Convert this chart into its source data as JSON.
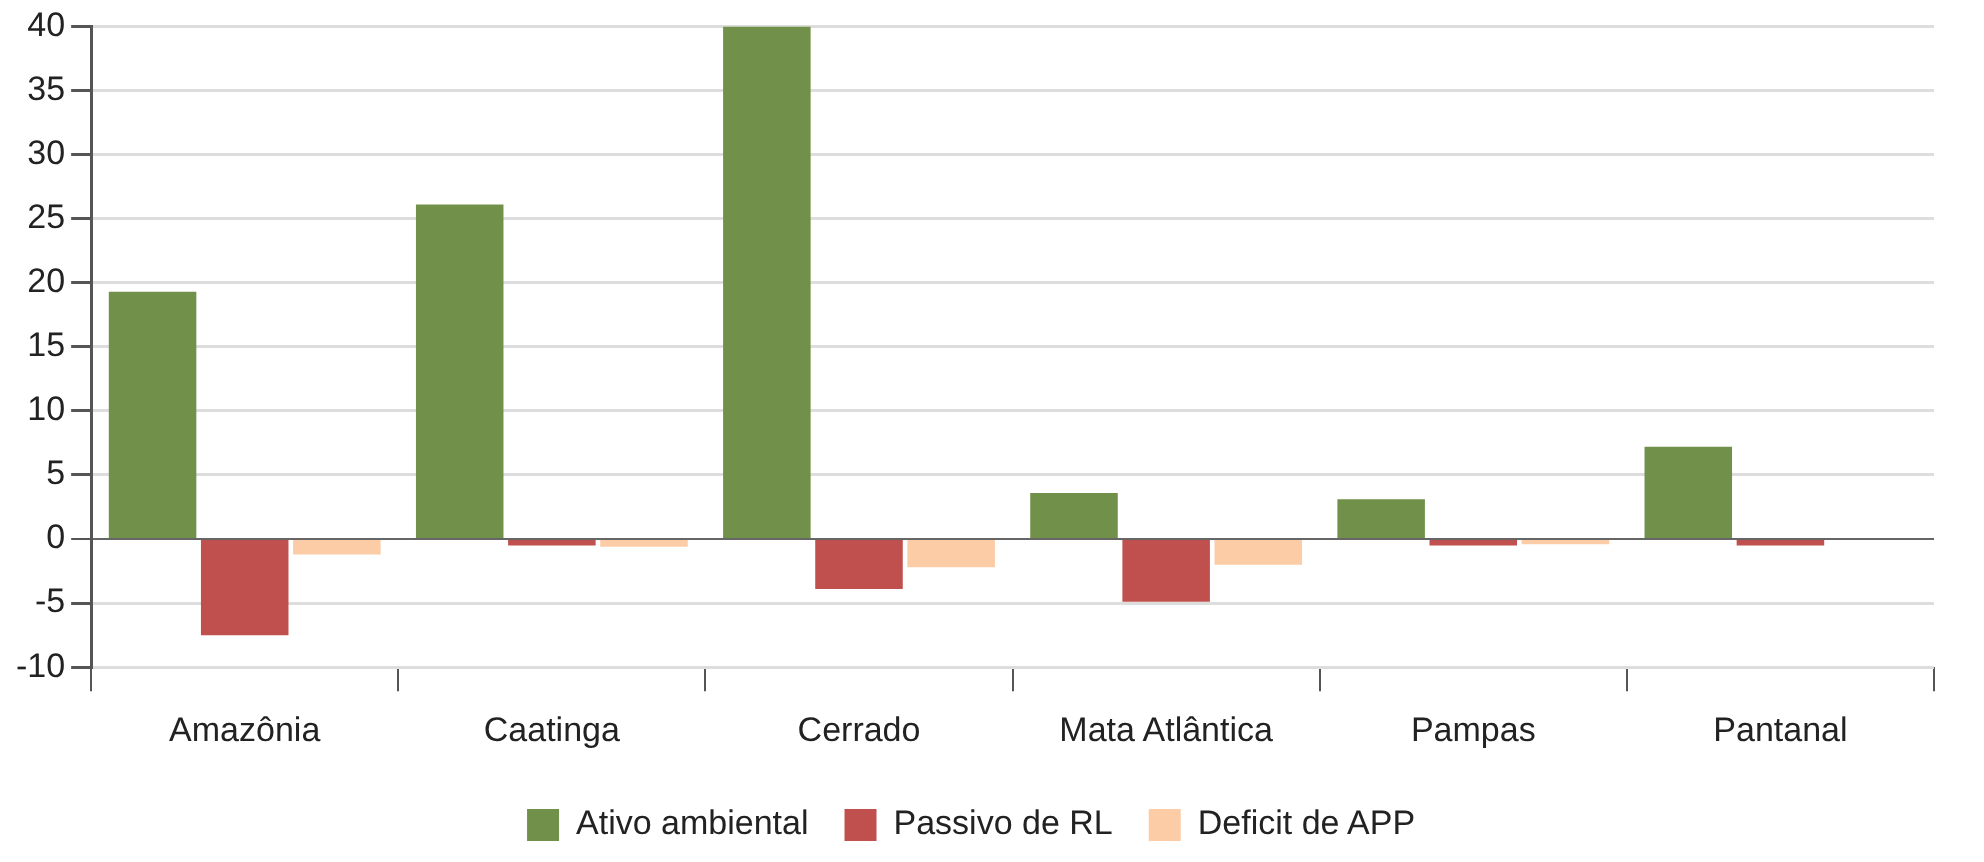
{
  "chart_data": {
    "type": "bar",
    "categories": [
      "Amazônia",
      "Caatinga",
      "Cerrado",
      "Mata Atlântica",
      "Pampas",
      "Pantanal"
    ],
    "series": [
      {
        "name": "Ativo ambiental",
        "color": "#71914a",
        "values": [
          19.3,
          26.1,
          40,
          3.6,
          3.1,
          7.2
        ]
      },
      {
        "name": "Passivo de RL",
        "color": "#c0504d",
        "values": [
          -7.5,
          -0.5,
          -3.9,
          -4.9,
          -0.5,
          -0.5
        ]
      },
      {
        "name": "Deficit de APP",
        "color": "#fccca6",
        "values": [
          -1.2,
          -0.6,
          -2.2,
          -2.0,
          -0.4,
          null
        ]
      }
    ],
    "ylim": [
      -10,
      40
    ],
    "yticks": [
      -10,
      -5,
      0,
      5,
      10,
      15,
      20,
      25,
      30,
      35,
      40
    ],
    "grid": "y",
    "legend": "bottom"
  }
}
